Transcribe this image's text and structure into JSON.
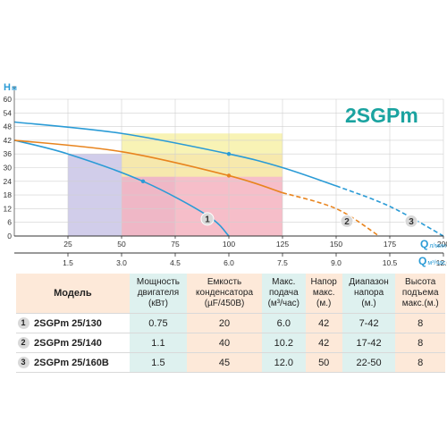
{
  "title": "2SGPm",
  "colors": {
    "blue": "#2a9bd6",
    "orange": "#e8841e",
    "teal_title": "#1aa3a0",
    "zone_purple": "#c9c4e6",
    "zone_pink": "#f4b3c0",
    "zone_yellow": "#f7f1a8"
  },
  "chart_data": {
    "type": "line",
    "y_axis": {
      "label": "H",
      "unit": "м",
      "ticks": [
        0,
        6,
        12,
        18,
        24,
        30,
        36,
        42,
        48,
        54,
        60
      ],
      "ylim": [
        0,
        60
      ]
    },
    "x_axis_lmin": {
      "label": "Q",
      "unit": "л/мин",
      "ticks": [
        25,
        50,
        75,
        100,
        125,
        150,
        175,
        200
      ],
      "xlim": [
        0,
        210
      ]
    },
    "x_axis_m3h": {
      "label": "Q",
      "unit": "м³/час",
      "ticks": [
        "1.5",
        "3.0",
        "4.5",
        "6.0",
        "7.5",
        "9.0",
        "10.5",
        "12.0"
      ]
    },
    "grid": true,
    "series": [
      {
        "name": "1",
        "color": "blue",
        "points": [
          [
            0,
            42
          ],
          [
            25,
            36
          ],
          [
            60,
            24
          ],
          [
            90,
            9
          ],
          [
            100,
            0
          ]
        ],
        "marker": [
          60,
          24
        ],
        "solid_to": 100
      },
      {
        "name": "2",
        "color": "orange",
        "points": [
          [
            0,
            42
          ],
          [
            50,
            37
          ],
          [
            100,
            26.5
          ],
          [
            125,
            19
          ],
          [
            150,
            12
          ],
          [
            170,
            0
          ]
        ],
        "marker": [
          100,
          26.5
        ],
        "solid_to": 125
      },
      {
        "name": "3",
        "color": "blue",
        "points": [
          [
            0,
            50
          ],
          [
            50,
            45
          ],
          [
            100,
            36
          ],
          [
            125,
            30
          ],
          [
            150,
            22
          ],
          [
            175,
            13
          ],
          [
            200,
            0
          ]
        ],
        "marker": [
          100,
          36
        ],
        "solid_to": 150
      }
    ],
    "zones": [
      {
        "color": "zone_purple",
        "x": [
          25,
          75
        ],
        "y": [
          0,
          36
        ]
      },
      {
        "color": "zone_pink",
        "x": [
          50,
          125
        ],
        "y": [
          0,
          36
        ]
      },
      {
        "color": "zone_yellow",
        "x": [
          50,
          125
        ],
        "y": [
          26,
          45
        ]
      }
    ]
  },
  "table": {
    "headers": {
      "model": "Модель",
      "power": [
        "Мощность",
        "двигателя",
        "(кВт)"
      ],
      "capacitor": [
        "Емкость",
        "конденсатора",
        "(µF/450В)"
      ],
      "flow": [
        "Макс.",
        "подача",
        "(м³/час)"
      ],
      "head": [
        "Напор",
        "макс.",
        "(м.)"
      ],
      "range": [
        "Диапазон",
        "напора",
        "(м.)"
      ],
      "lift": [
        "Высота",
        "подъема",
        "макс.(м.)"
      ]
    },
    "rows": [
      {
        "num": "1",
        "model": "2SGPm 25/130",
        "power": "0.75",
        "capacitor": "20",
        "flow": "6.0",
        "head": "42",
        "range": "7-42",
        "lift": "8"
      },
      {
        "num": "2",
        "model": "2SGPm 25/140",
        "power": "1.1",
        "capacitor": "40",
        "flow": "10.2",
        "head": "42",
        "range": "17-42",
        "lift": "8"
      },
      {
        "num": "3",
        "model": "2SGPm 25/160B",
        "power": "1.5",
        "capacitor": "45",
        "flow": "12.0",
        "head": "50",
        "range": "22-50",
        "lift": "8"
      }
    ]
  }
}
